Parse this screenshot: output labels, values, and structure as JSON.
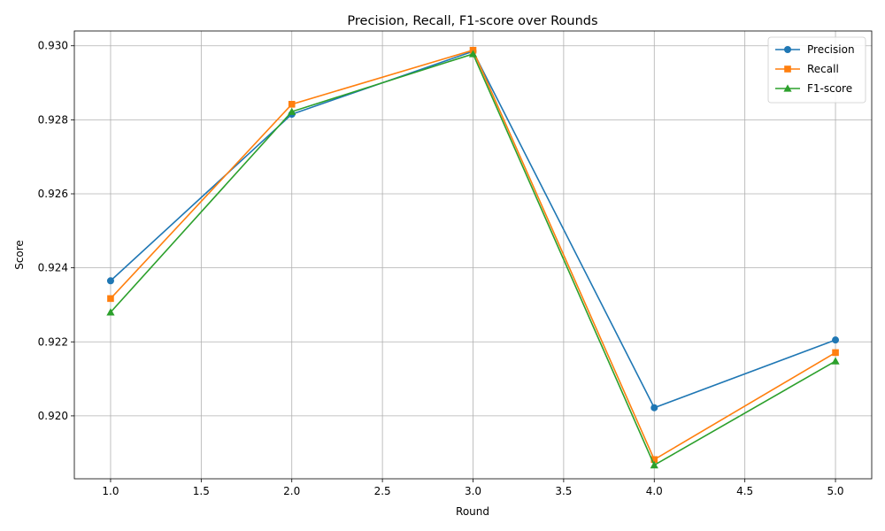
{
  "chart_data": {
    "type": "line",
    "title": "Precision, Recall, F1-score over Rounds",
    "xlabel": "Round",
    "ylabel": "Score",
    "x": [
      1,
      2,
      3,
      4,
      5
    ],
    "xlim": [
      0.8,
      5.2
    ],
    "ylim": [
      0.9183,
      0.9304
    ],
    "xticks": [
      1.0,
      1.5,
      2.0,
      2.5,
      3.0,
      3.5,
      4.0,
      4.5,
      5.0
    ],
    "xtick_labels": [
      "1.0",
      "1.5",
      "2.0",
      "2.5",
      "3.0",
      "3.5",
      "4.0",
      "4.5",
      "5.0"
    ],
    "yticks": [
      0.92,
      0.922,
      0.924,
      0.926,
      0.928,
      0.93
    ],
    "ytick_labels": [
      "0.920",
      "0.922",
      "0.924",
      "0.926",
      "0.928",
      "0.930"
    ],
    "grid": true,
    "legend_position": "top-right",
    "series": [
      {
        "name": "Precision",
        "color": "#1f77b4",
        "marker": "circle",
        "values": [
          0.92365,
          0.92815,
          0.92985,
          0.92022,
          0.92205
        ]
      },
      {
        "name": "Recall",
        "color": "#ff7f0e",
        "marker": "square",
        "values": [
          0.92317,
          0.92842,
          0.92988,
          0.91882,
          0.92171
        ]
      },
      {
        "name": "F1-score",
        "color": "#2ca02c",
        "marker": "triangle",
        "values": [
          0.9228,
          0.92822,
          0.92978,
          0.91867,
          0.92148
        ]
      }
    ]
  }
}
